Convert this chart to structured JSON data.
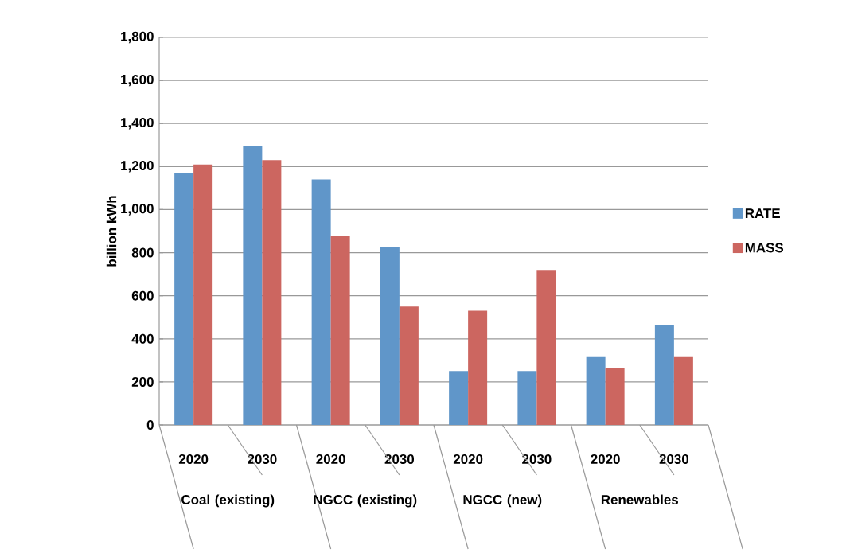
{
  "chart_data": {
    "type": "bar",
    "ylabel": "billion kWh",
    "categories": [
      "2020",
      "2030",
      "2020",
      "2030",
      "2020",
      "2030",
      "2020",
      "2030"
    ],
    "annotations": [
      "Coal (existing)",
      "NGCC (existing)",
      "NGCC (new)",
      "Renewables"
    ],
    "series": [
      {
        "name": "RATE",
        "color": "#6096c9",
        "values": [
          1170,
          1295,
          1140,
          825,
          250,
          250,
          315,
          465
        ]
      },
      {
        "name": "MASS",
        "color": "#cc6660",
        "values": [
          1210,
          1230,
          880,
          550,
          530,
          720,
          265,
          315
        ]
      }
    ],
    "ylim": [
      0,
      1800
    ],
    "yticks": [
      0,
      200,
      400,
      600,
      800,
      {
        "value": 1000,
        "label": "1,000"
      },
      {
        "value": 1200,
        "label": "1,200"
      },
      {
        "value": 1400,
        "label": "1,400"
      },
      {
        "value": 1600,
        "label": "1,600"
      },
      {
        "value": 1800,
        "label": "1,800"
      }
    ],
    "grid": "y",
    "legend": "right"
  }
}
